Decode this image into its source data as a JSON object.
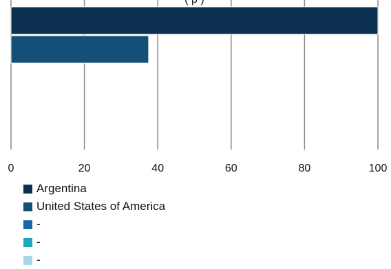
{
  "chart_data": {
    "type": "bar",
    "orientation": "horizontal",
    "categories": [
      "Argentina",
      "United States of America",
      "-",
      "-",
      "-"
    ],
    "values": [
      100,
      37.5,
      0,
      0,
      0
    ],
    "colors": [
      "#0a2f4f",
      "#134f76",
      "#1769a5",
      "#1fa7c0",
      "#a8d7e8"
    ],
    "xlim": [
      0,
      100
    ],
    "xticks": [
      "0",
      "20",
      "40",
      "60",
      "80",
      "100"
    ],
    "grid": true,
    "legend_position": "bottom-left",
    "title_partial": "(                                                        p )"
  }
}
